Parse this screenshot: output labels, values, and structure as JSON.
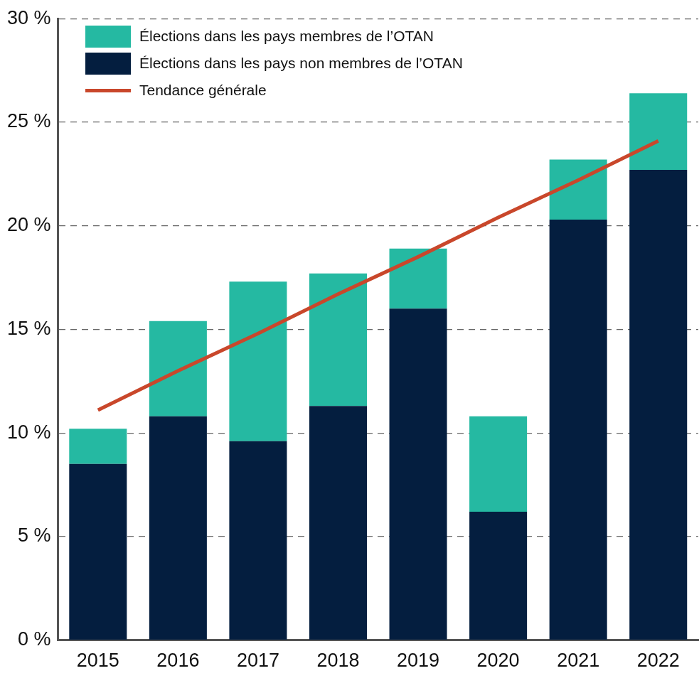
{
  "chart_data": {
    "type": "bar",
    "categories": [
      "2015",
      "2016",
      "2017",
      "2018",
      "2019",
      "2020",
      "2021",
      "2022"
    ],
    "series": [
      {
        "name": "Élections dans les pays membres de l’OTAN",
        "color": "#25B9A2",
        "values": [
          1.7,
          4.6,
          7.7,
          6.4,
          2.9,
          4.6,
          2.9,
          3.7
        ]
      },
      {
        "name": "Élections dans les pays non membres de l’OTAN",
        "color": "#041E3F",
        "values": [
          8.5,
          10.8,
          9.6,
          11.3,
          16.0,
          6.2,
          20.3,
          22.7
        ]
      },
      {
        "name": "Tendance générale",
        "type": "line",
        "color": "#C9472B",
        "values": [
          11.1,
          13.0,
          14.8,
          16.7,
          18.5,
          20.4,
          22.2,
          24.1
        ]
      }
    ],
    "stacked": true,
    "ylim": [
      0,
      30
    ],
    "yticks": [
      {
        "value": 0,
        "label": "0 %"
      },
      {
        "value": 5,
        "label": "5 %"
      },
      {
        "value": 10,
        "label": "10 %"
      },
      {
        "value": 15,
        "label": "15 %"
      },
      {
        "value": 20,
        "label": "20 %"
      },
      {
        "value": 25,
        "label": "25 %"
      },
      {
        "value": 30,
        "label": "30 %"
      }
    ],
    "grid": true,
    "legend": "upper left"
  }
}
